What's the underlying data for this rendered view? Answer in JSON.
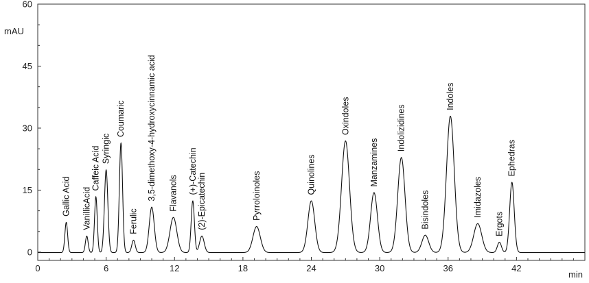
{
  "chart_data": {
    "type": "line",
    "xlabel": "min",
    "ylabel": "mAU",
    "xlim": [
      0,
      48
    ],
    "ylim": [
      -2,
      60
    ],
    "x_ticks": [
      {
        "value": 0,
        "label": "0"
      },
      {
        "value": 6,
        "label": "6"
      },
      {
        "value": 12,
        "label": "12"
      },
      {
        "value": 18,
        "label": "18"
      },
      {
        "value": 24,
        "label": "24"
      },
      {
        "value": 30,
        "label": "30"
      },
      {
        "value": 36,
        "label": "36"
      },
      {
        "value": 42,
        "label": "42"
      }
    ],
    "y_ticks": [
      {
        "value": 0,
        "label": "0"
      },
      {
        "value": 15,
        "label": "15"
      },
      {
        "value": 30,
        "label": "30"
      },
      {
        "value": 45,
        "label": "45"
      },
      {
        "value": 60,
        "label": "60"
      }
    ],
    "series_color": "#111111",
    "peaks": [
      {
        "name": "Gallic Acid",
        "rt": 2.5,
        "height": 7.3,
        "width": 0.12
      },
      {
        "name": "VanillicAcid",
        "rt": 4.3,
        "height": 4.0,
        "width": 0.12
      },
      {
        "name": "Caffeic Acid",
        "rt": 5.1,
        "height": 13.5,
        "width": 0.12
      },
      {
        "name": "Syringic",
        "rt": 6.0,
        "height": 20.0,
        "width": 0.15
      },
      {
        "name": "Coumaric",
        "rt": 7.3,
        "height": 26.5,
        "width": 0.14
      },
      {
        "name": "Ferulic",
        "rt": 8.4,
        "height": 3.0,
        "width": 0.15
      },
      {
        "name": "3,5-dimethoxy-4-hydroxycinnamic acid",
        "rt": 10.0,
        "height": 11.0,
        "width": 0.22
      },
      {
        "name": "Flavanols",
        "rt": 11.9,
        "height": 8.5,
        "width": 0.3
      },
      {
        "name": "(+)-Catechin",
        "rt": 13.6,
        "height": 12.5,
        "width": 0.14
      },
      {
        "name": "(2)-Epicatechin",
        "rt": 14.4,
        "height": 4.0,
        "width": 0.2
      },
      {
        "name": "Pyrroloinoles",
        "rt": 19.2,
        "height": 6.3,
        "width": 0.32
      },
      {
        "name": "Quinolines",
        "rt": 24.0,
        "height": 12.5,
        "width": 0.3
      },
      {
        "name": "Oxindoles",
        "rt": 27.0,
        "height": 27.0,
        "width": 0.35
      },
      {
        "name": "Manzamines",
        "rt": 29.5,
        "height": 14.5,
        "width": 0.3
      },
      {
        "name": "Indolizidines",
        "rt": 31.9,
        "height": 23.0,
        "width": 0.32
      },
      {
        "name": "Bisindoles",
        "rt": 34.0,
        "height": 4.2,
        "width": 0.3
      },
      {
        "name": "Indoles",
        "rt": 36.2,
        "height": 33.0,
        "width": 0.34
      },
      {
        "name": "Imidazoles",
        "rt": 38.6,
        "height": 7.0,
        "width": 0.35
      },
      {
        "name": "Ergots",
        "rt": 40.5,
        "height": 2.5,
        "width": 0.18
      },
      {
        "name": "Ephedras",
        "rt": 41.6,
        "height": 17.0,
        "width": 0.2
      }
    ]
  }
}
